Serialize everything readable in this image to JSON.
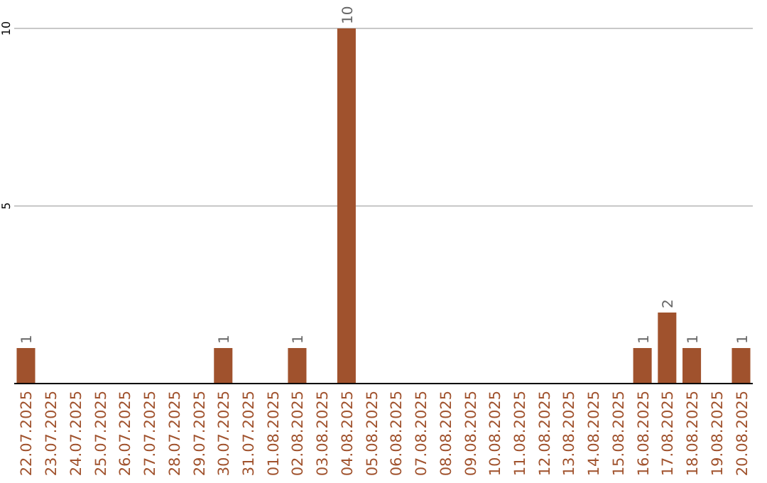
{
  "chart_data": {
    "type": "bar",
    "categories": [
      "22.07.2025",
      "23.07.2025",
      "24.07.2025",
      "25.07.2025",
      "26.07.2025",
      "27.07.2025",
      "28.07.2025",
      "29.07.2025",
      "30.07.2025",
      "31.07.2025",
      "01.08.2025",
      "02.08.2025",
      "03.08.2025",
      "04.08.2025",
      "05.08.2025",
      "06.08.2025",
      "07.08.2025",
      "08.08.2025",
      "09.08.2025",
      "10.08.2025",
      "11.08.2025",
      "12.08.2025",
      "13.08.2025",
      "14.08.2025",
      "15.08.2025",
      "16.08.2025",
      "17.08.2025",
      "18.08.2025",
      "19.08.2025",
      "20.08.2025"
    ],
    "values": [
      1,
      0,
      0,
      0,
      0,
      0,
      0,
      0,
      1,
      0,
      0,
      1,
      0,
      10,
      0,
      0,
      0,
      0,
      0,
      0,
      0,
      0,
      0,
      0,
      0,
      1,
      2,
      1,
      0,
      1
    ],
    "value_labels": [
      "1",
      null,
      null,
      null,
      null,
      null,
      null,
      null,
      "1",
      null,
      null,
      "1",
      null,
      "10",
      null,
      null,
      null,
      null,
      null,
      null,
      null,
      null,
      null,
      null,
      null,
      "1",
      "2",
      "1",
      null,
      "1"
    ],
    "color": "#a0522d",
    "ylim": [
      0,
      10
    ],
    "yticks": [
      5,
      10
    ],
    "grid": "y"
  }
}
